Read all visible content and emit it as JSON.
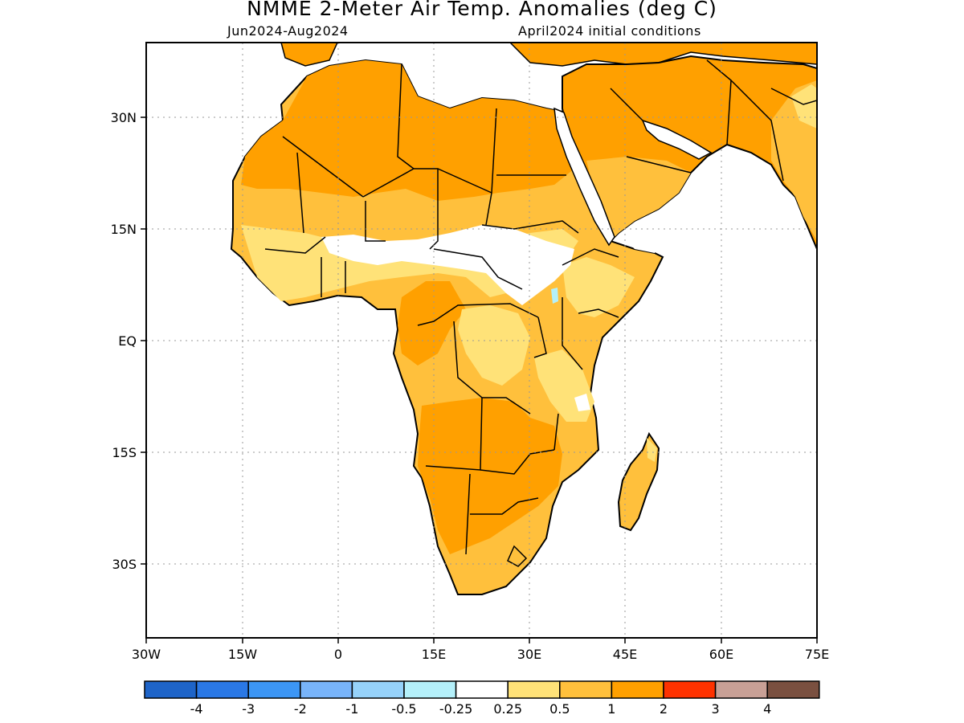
{
  "title": "NMME 2-Meter Air Temp. Anomalies (deg C)",
  "subtitle_left": "Jun2024-Aug2024",
  "subtitle_right": "April2024 initial conditions",
  "lat_ticks": [
    "30N",
    "15N",
    "EQ",
    "15S",
    "30S"
  ],
  "lon_ticks": [
    "30W",
    "15W",
    "0",
    "15E",
    "30E",
    "45E",
    "60E",
    "75E"
  ],
  "colorbar": {
    "colors": [
      "#1e64c8",
      "#2a78e6",
      "#3c96f5",
      "#78b4fa",
      "#96d2fa",
      "#b4f0fa",
      "#ffffff",
      "#ffe278",
      "#ffc03c",
      "#ffa000",
      "#ff3200",
      "#c8a096",
      "#7a5040"
    ],
    "labels": [
      "-4",
      "-3",
      "-2",
      "-1",
      "-0.5",
      "-0.25",
      "0.25",
      "0.5",
      "1",
      "2",
      "3",
      "4"
    ]
  }
}
